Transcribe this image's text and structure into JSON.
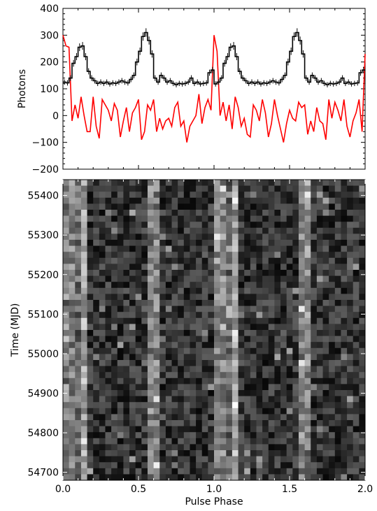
{
  "chart_data": [
    {
      "type": "line",
      "title": "",
      "xlabel": "",
      "ylabel": "Photons",
      "xlim": [
        0.0,
        2.0
      ],
      "ylim": [
        -200,
        400
      ],
      "yticks": [
        "400",
        "300",
        "200",
        "100",
        "0",
        "−100",
        "−200"
      ],
      "grid": false,
      "series": [
        {
          "style": "step-with-error-bars",
          "color": "#000000",
          "bin_width": 0.02,
          "x": [
            0.0,
            0.02,
            0.04,
            0.06,
            0.08,
            0.1,
            0.12,
            0.14,
            0.16,
            0.18,
            0.2,
            0.22,
            0.24,
            0.26,
            0.28,
            0.3,
            0.32,
            0.34,
            0.36,
            0.38,
            0.4,
            0.42,
            0.44,
            0.46,
            0.48,
            0.5,
            0.52,
            0.54,
            0.56,
            0.58,
            0.6,
            0.62,
            0.64,
            0.66,
            0.68,
            0.7,
            0.72,
            0.74,
            0.76,
            0.78,
            0.8,
            0.82,
            0.84,
            0.86,
            0.88,
            0.9,
            0.92,
            0.94,
            0.96,
            0.98,
            1.0,
            1.02,
            1.04,
            1.06,
            1.08,
            1.1,
            1.12,
            1.14,
            1.16,
            1.18,
            1.2,
            1.22,
            1.24,
            1.26,
            1.28,
            1.3,
            1.32,
            1.34,
            1.36,
            1.38,
            1.4,
            1.42,
            1.44,
            1.46,
            1.48,
            1.5,
            1.52,
            1.54,
            1.56,
            1.58,
            1.6,
            1.62,
            1.64,
            1.66,
            1.68,
            1.7,
            1.72,
            1.74,
            1.76,
            1.78,
            1.8,
            1.82,
            1.84,
            1.86,
            1.88,
            1.9,
            1.92,
            1.94,
            1.96,
            1.98
          ],
          "values": [
            125,
            122,
            140,
            195,
            220,
            255,
            260,
            220,
            165,
            140,
            130,
            120,
            125,
            120,
            125,
            118,
            122,
            120,
            125,
            130,
            125,
            122,
            135,
            150,
            200,
            240,
            295,
            310,
            280,
            230,
            140,
            125,
            150,
            140,
            125,
            130,
            120,
            115,
            120,
            118,
            120,
            125,
            140,
            120,
            125,
            118,
            120,
            122,
            160,
            170,
            118,
            125,
            140,
            195,
            220,
            255,
            260,
            220,
            165,
            140,
            130,
            120,
            125,
            120,
            125,
            118,
            122,
            120,
            125,
            130,
            125,
            122,
            135,
            150,
            200,
            240,
            295,
            310,
            280,
            230,
            140,
            125,
            150,
            140,
            125,
            130,
            120,
            115,
            120,
            118,
            120,
            125,
            140,
            120,
            125,
            118,
            120,
            122,
            160,
            170
          ]
        },
        {
          "style": "line",
          "color": "#ff0000",
          "x": [
            0.0,
            0.02,
            0.04,
            0.06,
            0.08,
            0.1,
            0.12,
            0.14,
            0.16,
            0.18,
            0.2,
            0.22,
            0.24,
            0.26,
            0.28,
            0.3,
            0.32,
            0.34,
            0.36,
            0.38,
            0.4,
            0.42,
            0.44,
            0.46,
            0.48,
            0.5,
            0.52,
            0.54,
            0.56,
            0.58,
            0.6,
            0.62,
            0.64,
            0.66,
            0.68,
            0.7,
            0.72,
            0.74,
            0.76,
            0.78,
            0.8,
            0.82,
            0.84,
            0.86,
            0.88,
            0.9,
            0.92,
            0.94,
            0.96,
            0.98,
            1.0,
            1.02,
            1.04,
            1.06,
            1.08,
            1.1,
            1.12,
            1.14,
            1.16,
            1.18,
            1.2,
            1.22,
            1.24,
            1.26,
            1.28,
            1.3,
            1.32,
            1.34,
            1.36,
            1.38,
            1.4,
            1.42,
            1.44,
            1.46,
            1.48,
            1.5,
            1.52,
            1.54,
            1.56,
            1.58,
            1.6,
            1.62,
            1.64,
            1.66,
            1.68,
            1.7,
            1.72,
            1.74,
            1.76,
            1.78,
            1.8,
            1.82,
            1.84,
            1.86,
            1.88,
            1.9,
            1.92,
            1.94,
            1.96,
            1.98,
            2.0
          ],
          "values": [
            300,
            260,
            255,
            -20,
            40,
            -10,
            70,
            0,
            -60,
            -60,
            70,
            -40,
            -85,
            60,
            40,
            20,
            -20,
            45,
            20,
            -80,
            -20,
            30,
            -60,
            10,
            30,
            60,
            -90,
            -60,
            40,
            20,
            60,
            -60,
            -10,
            -50,
            -20,
            -10,
            -40,
            30,
            50,
            -40,
            -20,
            -100,
            -40,
            -20,
            0,
            80,
            -30,
            30,
            60,
            20,
            300,
            240,
            0,
            50,
            -20,
            40,
            -50,
            70,
            30,
            -40,
            -10,
            -70,
            -80,
            40,
            20,
            -20,
            60,
            10,
            -80,
            -30,
            60,
            0,
            -50,
            -100,
            -30,
            20,
            -10,
            -20,
            50,
            30,
            40,
            -70,
            -20,
            -60,
            30,
            -20,
            -30,
            -90,
            60,
            -10,
            50,
            20,
            -20,
            60,
            -40,
            -80,
            -20,
            10,
            60,
            -60,
            230
          ]
        }
      ]
    },
    {
      "type": "heatmap",
      "title": "",
      "xlabel": "Pulse Phase",
      "ylabel": "Time (MJD)",
      "xlim": [
        0.0,
        2.0
      ],
      "ylim": [
        54680,
        55440
      ],
      "xticks": [
        "0.0",
        "0.5",
        "1.0",
        "1.5",
        "2.0"
      ],
      "yticks": [
        "55400",
        "55300",
        "55200",
        "55100",
        "55000",
        "54900",
        "54800",
        "54700"
      ],
      "colormap": "grayscale",
      "cols": 50,
      "rows": 50,
      "bright_phase_bands": [
        0.04,
        0.13,
        0.6,
        1.04,
        1.13,
        1.6
      ]
    }
  ]
}
